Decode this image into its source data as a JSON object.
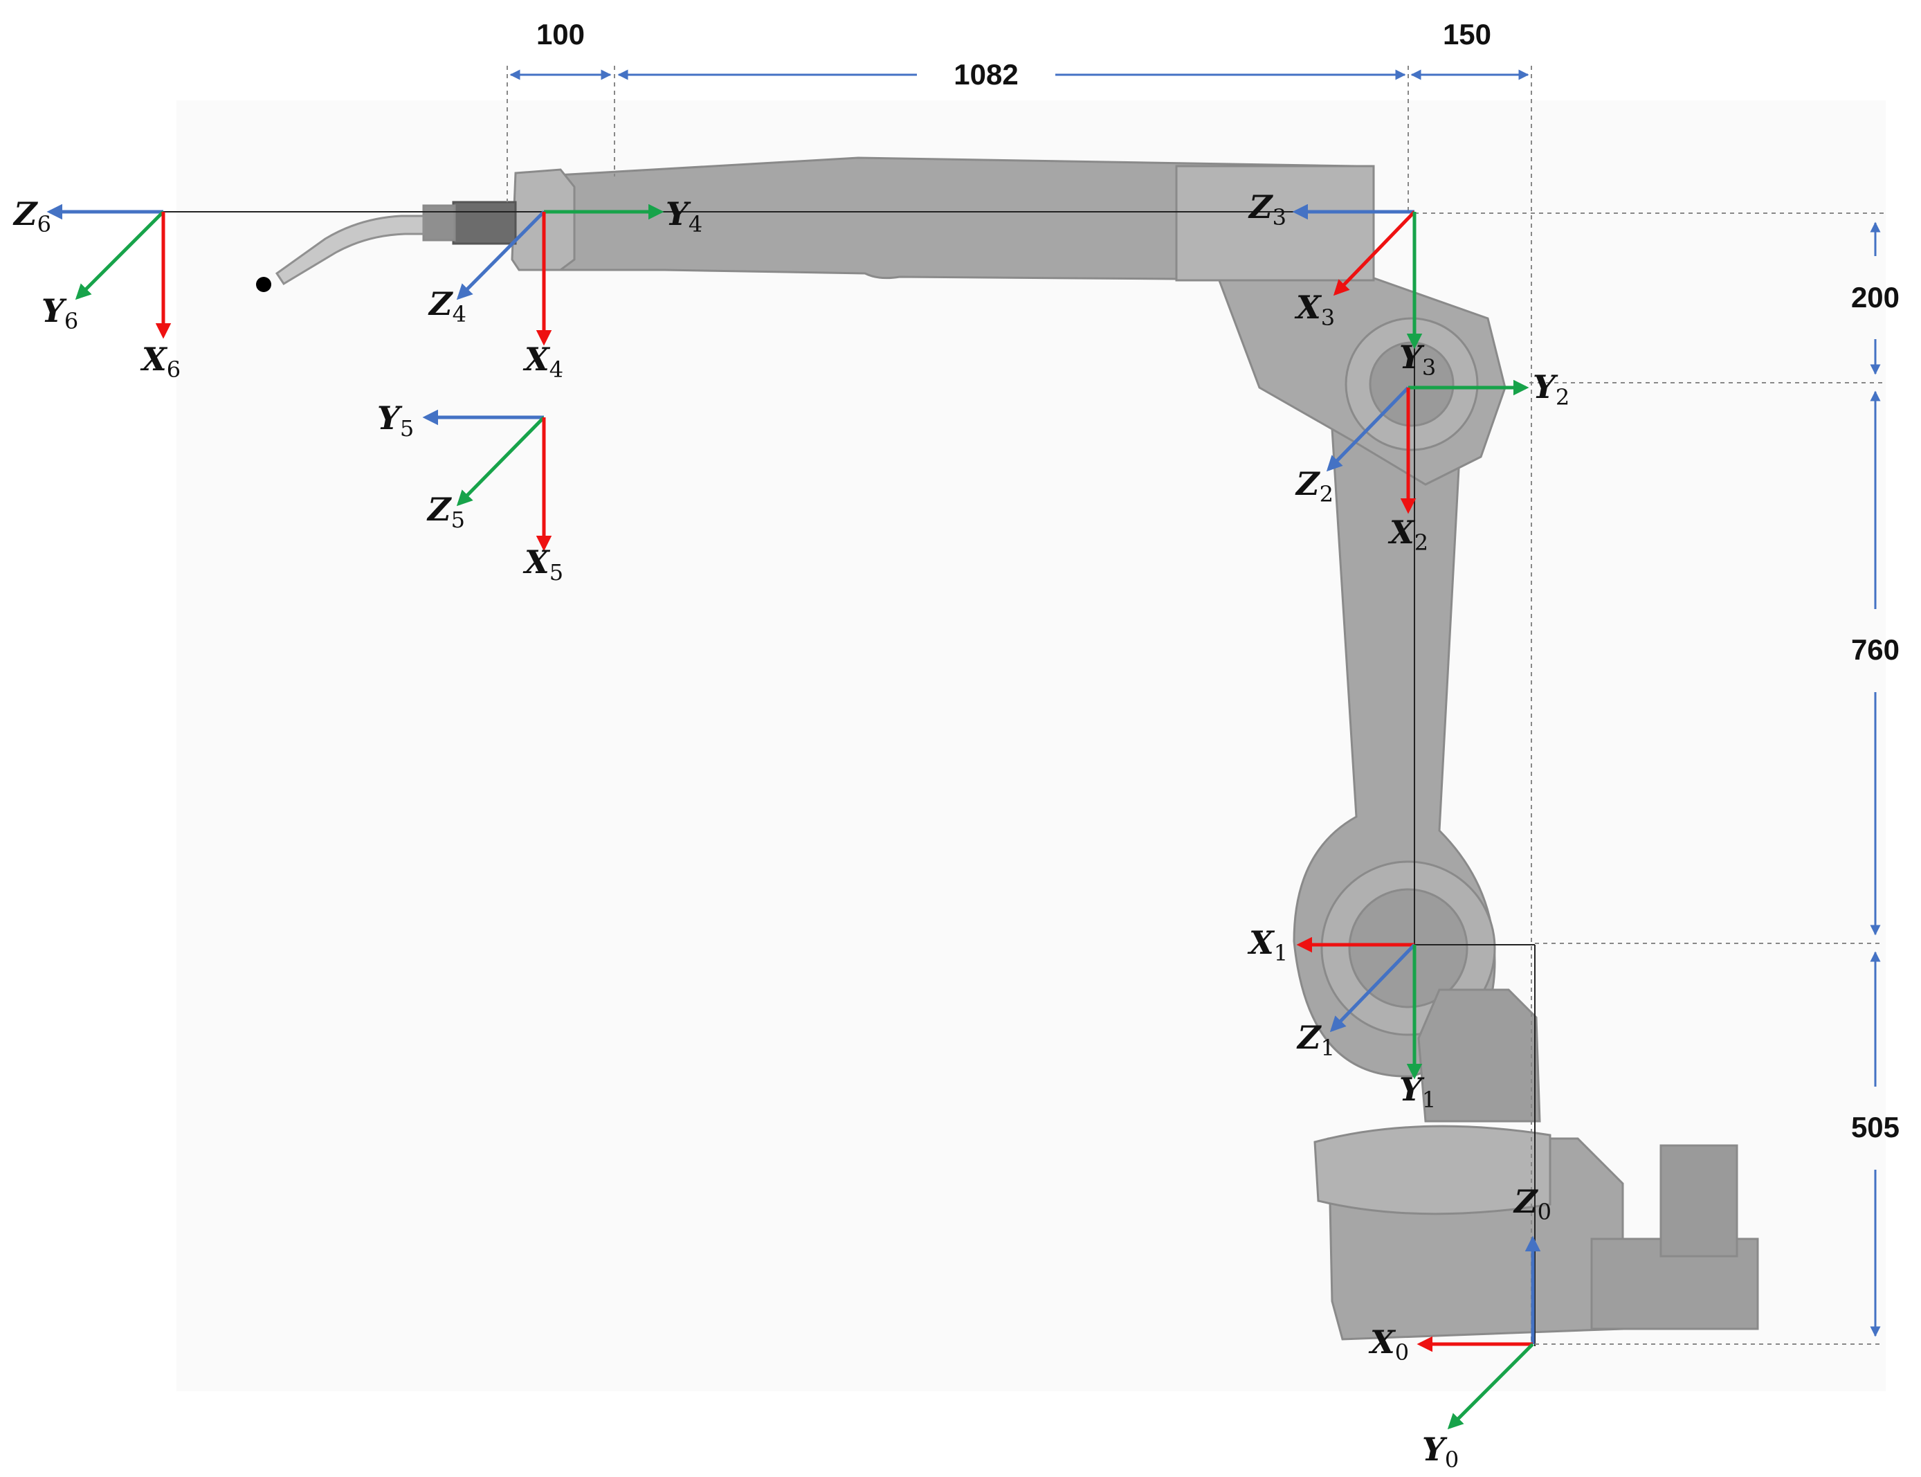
{
  "colors": {
    "x_axis": "#ee1111",
    "y_axis": "#17a34a",
    "z_axis": "#4472c4",
    "dimension": "#4472c4",
    "robot": "#a6a6a6",
    "robot_dark": "#8c8c8c"
  },
  "dimensions": {
    "d100": "100",
    "d1082": "1082",
    "d150": "150",
    "d200": "200",
    "d760": "760",
    "d505": "505"
  },
  "frames": {
    "f0": {
      "x": "X",
      "x_sub": "0",
      "y": "Y",
      "y_sub": "0",
      "z": "Z",
      "z_sub": "0"
    },
    "f1": {
      "x": "X",
      "x_sub": "1",
      "y": "Y",
      "y_sub": "1",
      "z": "Z",
      "z_sub": "1"
    },
    "f2": {
      "x": "X",
      "x_sub": "2",
      "y": "Y",
      "y_sub": "2",
      "z": "Z",
      "z_sub": "2"
    },
    "f3": {
      "x": "X",
      "x_sub": "3",
      "y": "Y",
      "y_sub": "3",
      "z": "Z",
      "z_sub": "3"
    },
    "f4": {
      "x": "X",
      "x_sub": "4",
      "y": "Y",
      "y_sub": "4",
      "z": "Z",
      "z_sub": "4"
    },
    "f5": {
      "x": "X",
      "x_sub": "5",
      "y": "Y",
      "y_sub": "5",
      "z": "Z",
      "z_sub": "5"
    },
    "f6": {
      "x": "X",
      "x_sub": "6",
      "y": "Y",
      "y_sub": "6",
      "z": "Z",
      "z_sub": "6"
    }
  }
}
